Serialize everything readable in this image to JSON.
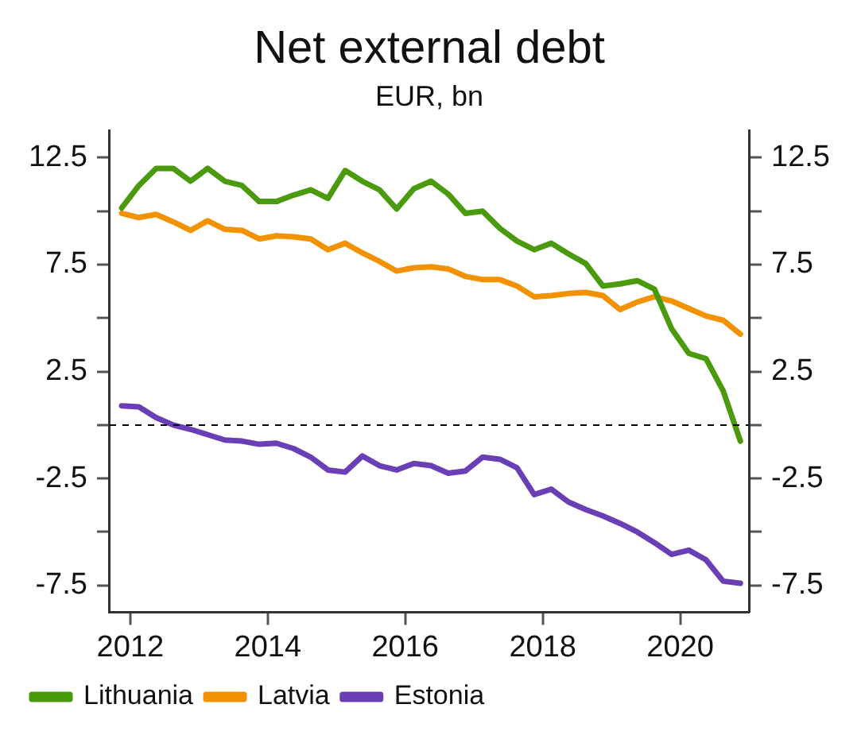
{
  "chart_data": {
    "type": "line",
    "title": "Net external debt",
    "subtitle": "EUR, bn",
    "x": [
      2011.875,
      2012.125,
      2012.375,
      2012.625,
      2012.875,
      2013.125,
      2013.375,
      2013.625,
      2013.875,
      2014.125,
      2014.375,
      2014.625,
      2014.875,
      2015.125,
      2015.375,
      2015.625,
      2015.875,
      2016.125,
      2016.375,
      2016.625,
      2016.875,
      2017.125,
      2017.375,
      2017.625,
      2017.875,
      2018.125,
      2018.375,
      2018.625,
      2018.875,
      2019.125,
      2019.375,
      2019.625,
      2019.875,
      2020.125,
      2020.375,
      2020.625,
      2020.875
    ],
    "series": [
      {
        "name": "Lithuania",
        "color": "#4a9a0e",
        "values": [
          10.15,
          11.2,
          12.0,
          12.0,
          11.4,
          12.0,
          11.4,
          11.2,
          10.45,
          10.45,
          10.75,
          11.0,
          10.6,
          11.9,
          11.4,
          11.0,
          10.1,
          11.05,
          11.4,
          10.8,
          9.9,
          10.0,
          9.2,
          8.6,
          8.2,
          8.5,
          8.0,
          7.55,
          6.5,
          6.6,
          6.75,
          6.35,
          4.5,
          3.35,
          3.1,
          1.6,
          -0.75
        ]
      },
      {
        "name": "Latvia",
        "color": "#f39200",
        "values": [
          9.9,
          9.7,
          9.85,
          9.5,
          9.1,
          9.55,
          9.15,
          9.1,
          8.7,
          8.85,
          8.8,
          8.7,
          8.2,
          8.5,
          8.05,
          7.65,
          7.2,
          7.35,
          7.4,
          7.3,
          6.95,
          6.8,
          6.8,
          6.5,
          6.0,
          6.05,
          6.15,
          6.2,
          6.05,
          5.4,
          5.75,
          6.0,
          5.8,
          5.45,
          5.1,
          4.9,
          4.25
        ]
      },
      {
        "name": "Estonia",
        "color": "#6a3fb5",
        "values": [
          0.9,
          0.85,
          0.35,
          0.0,
          -0.2,
          -0.45,
          -0.7,
          -0.75,
          -0.9,
          -0.85,
          -1.1,
          -1.5,
          -2.1,
          -2.2,
          -1.45,
          -1.9,
          -2.1,
          -1.8,
          -1.9,
          -2.25,
          -2.15,
          -1.5,
          -1.6,
          -2.0,
          -3.25,
          -3.0,
          -3.6,
          -3.95,
          -4.25,
          -4.6,
          -5.0,
          -5.5,
          -6.05,
          -5.85,
          -6.3,
          -7.3,
          -7.4
        ]
      }
    ],
    "xlim": [
      2011.7,
      2021.0
    ],
    "xticks": [
      2012,
      2014,
      2016,
      2018,
      2020
    ],
    "ylim": [
      -8.75,
      13.75
    ],
    "yticks": [
      -7.5,
      {
        "value": -5,
        "label": null
      },
      -2.5,
      {
        "value": 0,
        "label": null
      },
      2.5,
      {
        "value": 5,
        "label": null
      },
      7.5,
      {
        "value": 10,
        "label": null
      },
      12.5
    ],
    "y2lim": [
      -8.75,
      13.75
    ],
    "y2ticks": [
      -7.5,
      {
        "value": -5,
        "label": null
      },
      -2.5,
      {
        "value": 0,
        "label": null
      },
      2.5,
      {
        "value": 5,
        "label": null
      },
      7.5,
      {
        "value": 10,
        "label": null
      },
      12.5
    ],
    "ref_lines": [
      {
        "axis": "y",
        "value": 0,
        "color": "#000000",
        "line_style": "dashed"
      }
    ],
    "grid": false,
    "legend": "bottom",
    "marker": "none",
    "line_style": "solid"
  }
}
